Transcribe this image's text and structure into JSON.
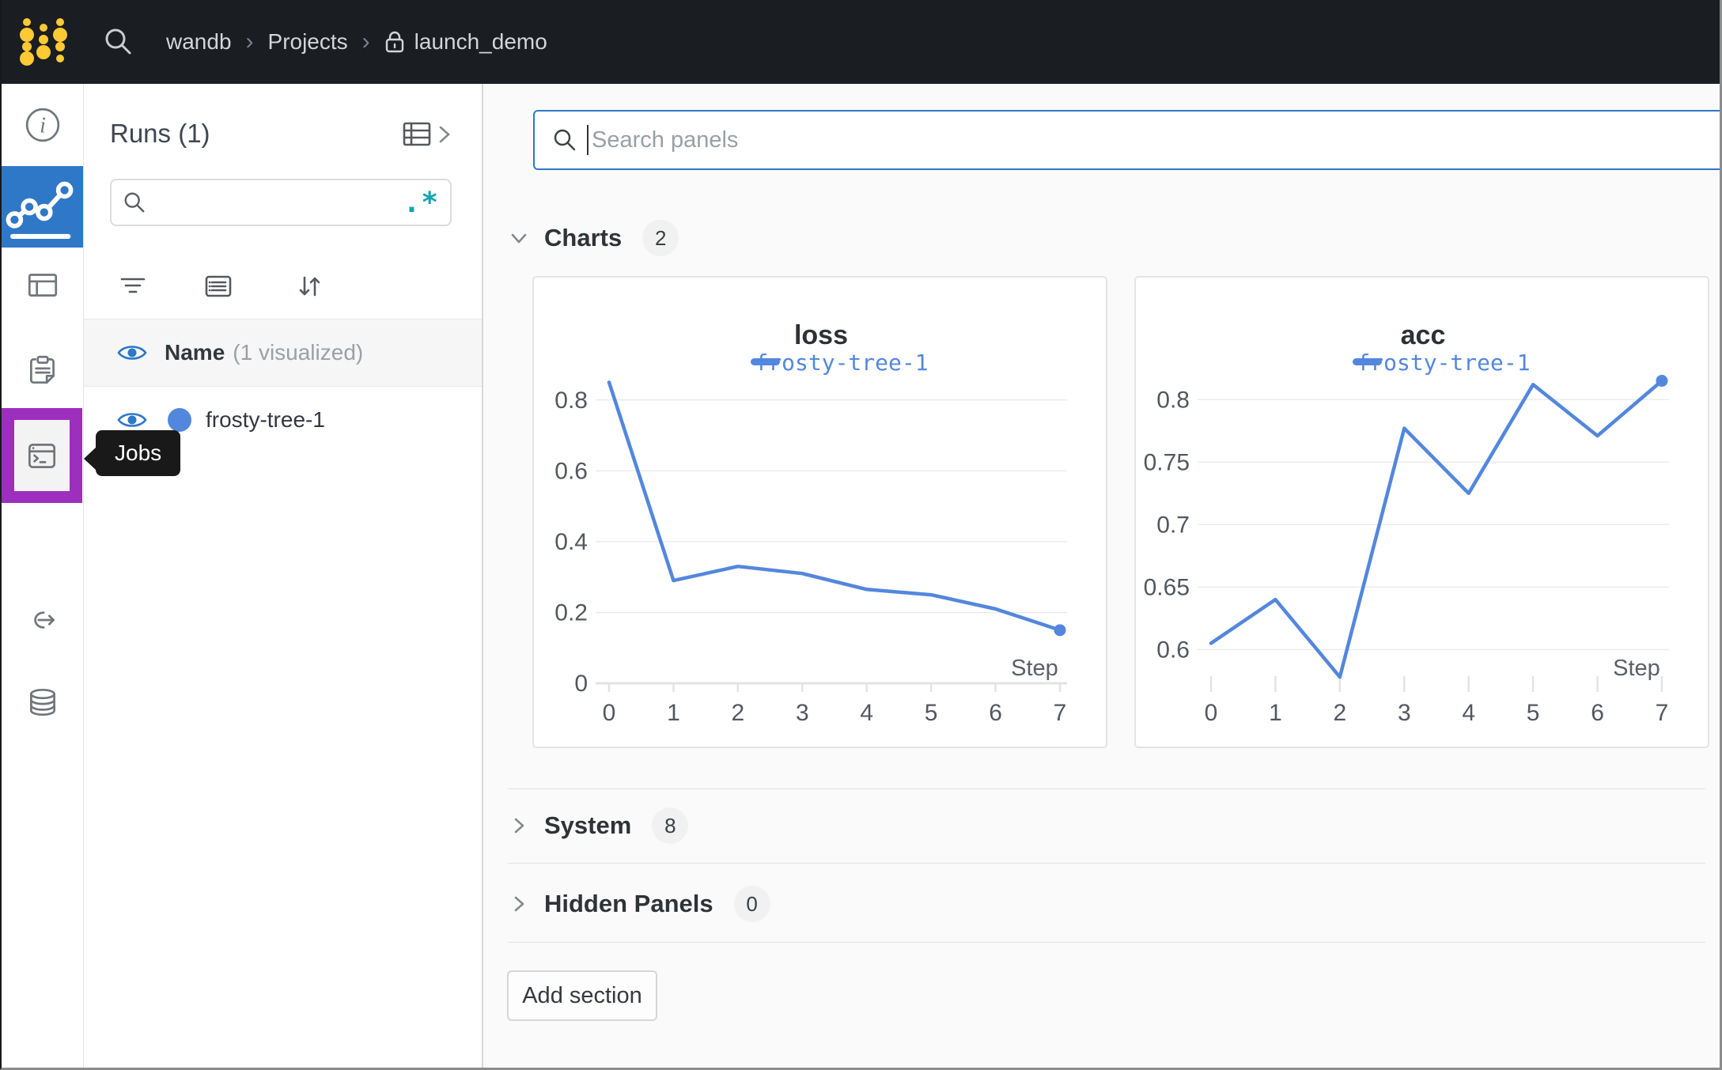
{
  "navbar": {
    "team": "wandb",
    "section": "Projects",
    "project": "launch_demo"
  },
  "sidebar": {
    "tooltip": "Jobs",
    "active_color": "#2e78c7",
    "highlight_color": "#9d2fbe",
    "icons": [
      "info-circle-icon",
      "line-chart-icon",
      "table-icon",
      "reports-icon",
      "sweeps-icon",
      "jobs-terminal-icon",
      "automations-icon",
      "artifacts-icon"
    ]
  },
  "runs_panel": {
    "title": "Runs (1)",
    "search_value": "",
    "regex_toggle": ".*",
    "header": {
      "name": "Name",
      "visualized": "(1 visualized)"
    },
    "runs": [
      {
        "name": "frosty-tree-1",
        "color": "#5387dd"
      }
    ]
  },
  "main": {
    "search": {
      "placeholder": "Search panels"
    },
    "sections": [
      {
        "label": "Charts",
        "count": "2",
        "expanded": true
      },
      {
        "label": "System",
        "count": "8",
        "expanded": false
      },
      {
        "label": "Hidden Panels",
        "count": "0",
        "expanded": false
      }
    ],
    "add_section": "Add section"
  },
  "chart_data": [
    {
      "type": "line",
      "title": "loss",
      "xlabel": "Step",
      "x": [
        0,
        1,
        2,
        3,
        4,
        5,
        6,
        7
      ],
      "series": [
        {
          "name": "frosty-tree-1",
          "color": "#5387dd",
          "values": [
            0.85,
            0.29,
            0.33,
            0.31,
            0.265,
            0.25,
            0.21,
            0.15
          ]
        }
      ],
      "yticks": [
        0,
        0.2,
        0.4,
        0.6,
        0.8
      ],
      "ylim": [
        0,
        0.9
      ],
      "grid": "horizontal",
      "baseline": true,
      "endpoint_marker": true,
      "legend_position": "top"
    },
    {
      "type": "line",
      "title": "acc",
      "xlabel": "Step",
      "x": [
        0,
        1,
        2,
        3,
        4,
        5,
        6,
        7
      ],
      "series": [
        {
          "name": "frosty-tree-1",
          "color": "#5387dd",
          "values": [
            0.605,
            0.64,
            0.578,
            0.777,
            0.725,
            0.812,
            0.771,
            0.815
          ]
        }
      ],
      "yticks": [
        0.6,
        0.65,
        0.7,
        0.75,
        0.8
      ],
      "ylim": [
        0.573,
        0.828
      ],
      "grid": "horizontal",
      "baseline": false,
      "endpoint_marker": true,
      "legend_position": "top"
    }
  ]
}
